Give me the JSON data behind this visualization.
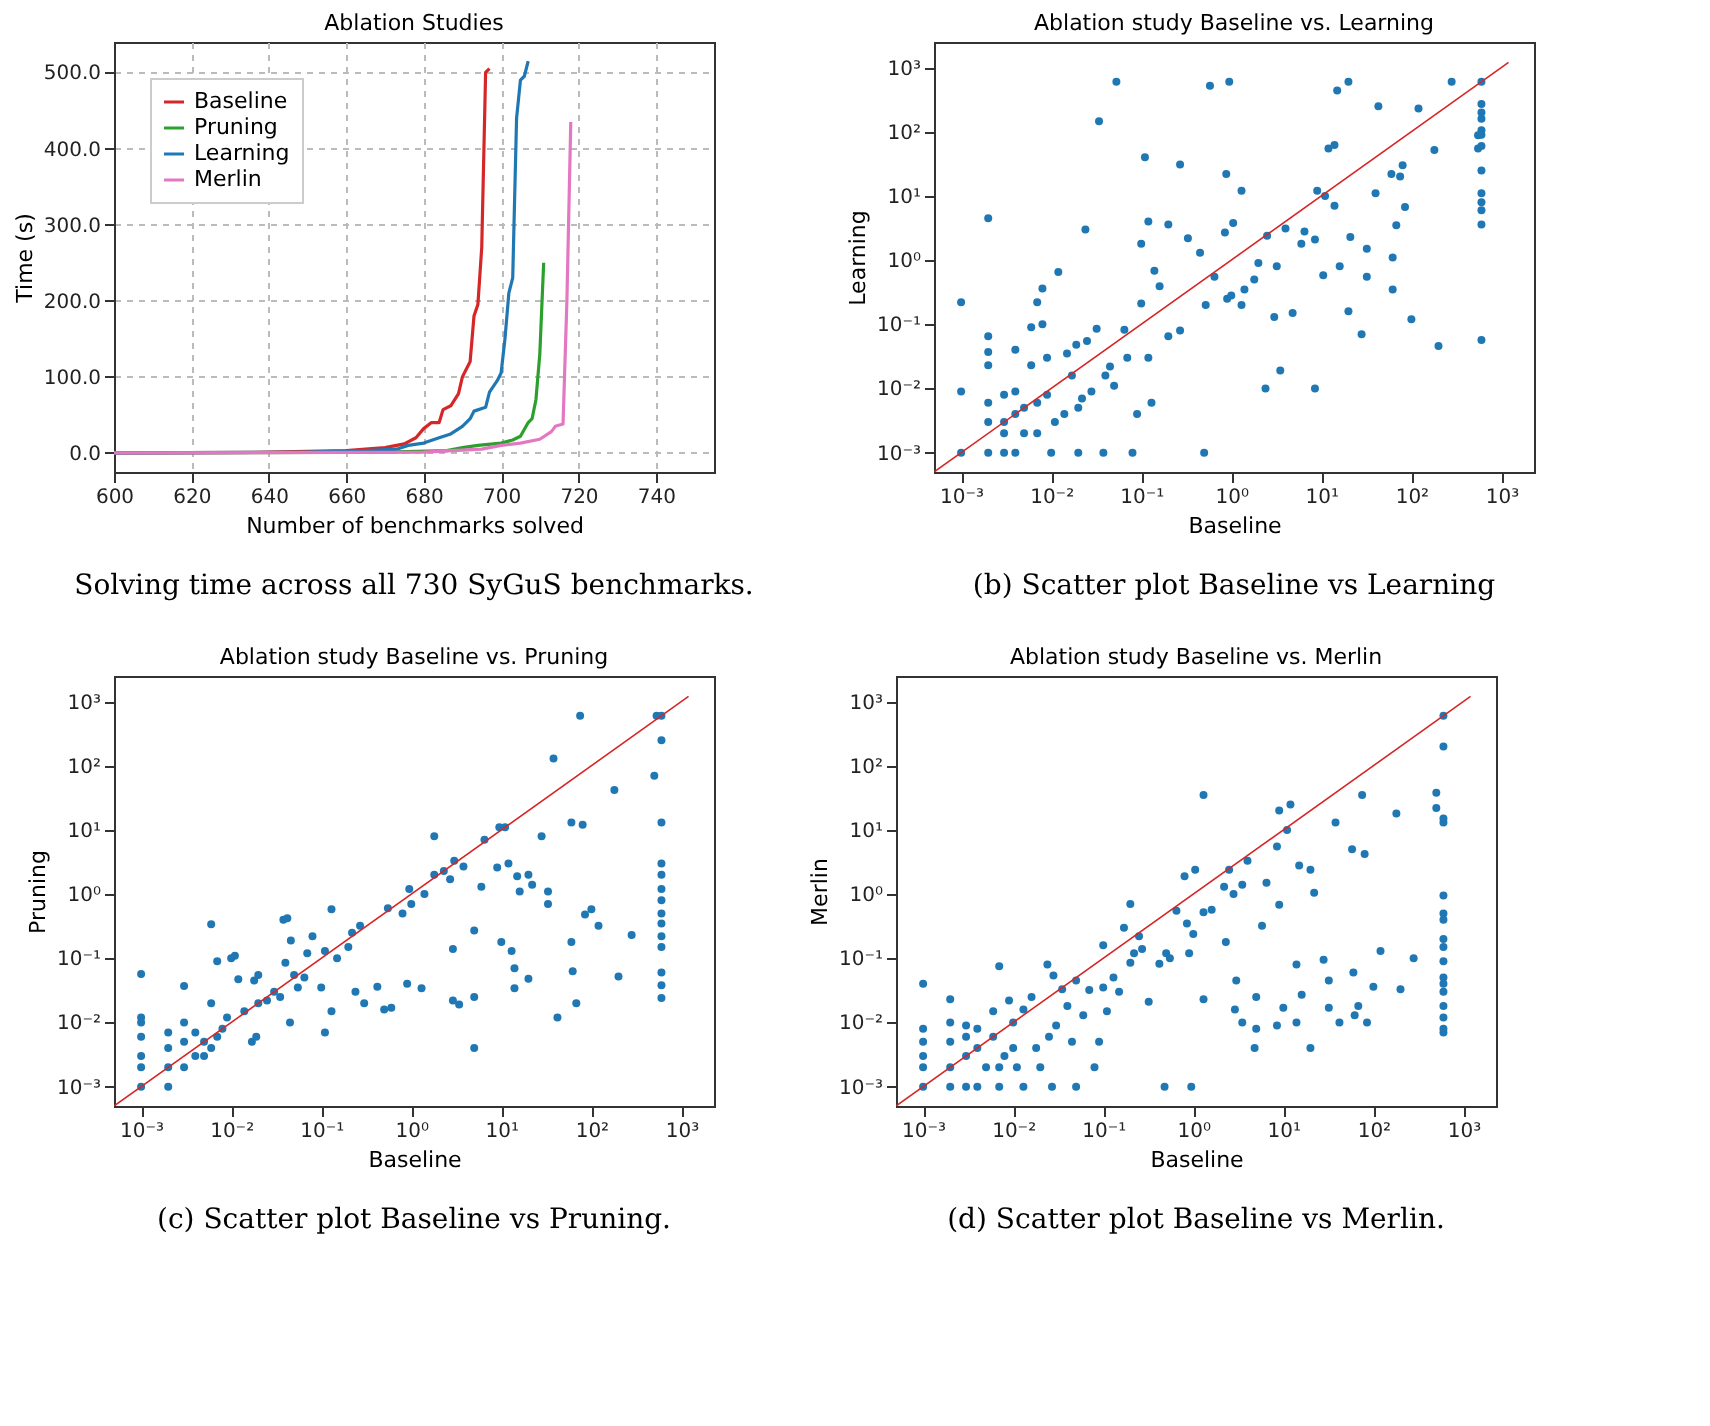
{
  "chart_data": [
    {
      "type": "line",
      "title": "Ablation Studies",
      "xlabel": "Number of benchmarks solved",
      "ylabel": "Time (s)",
      "xlim": [
        600,
        755
      ],
      "ylim": [
        -25,
        540
      ],
      "xticks": [
        600,
        620,
        640,
        660,
        680,
        700,
        720,
        740
      ],
      "yticks": [
        {
          "value": 0,
          "label": "0.0"
        },
        {
          "value": 100,
          "label": "100.0"
        },
        {
          "value": 200,
          "label": "200.0"
        },
        {
          "value": 300,
          "label": "300.0"
        },
        {
          "value": 400,
          "label": "400.0"
        },
        {
          "value": 500,
          "label": "500.0"
        }
      ],
      "grid": true,
      "legend": "top left",
      "annotations": [
        "Solving time across all 730 SyGuS benchmarks."
      ],
      "series": [
        {
          "name": "Baseline",
          "line_style": "solid",
          "color": "#d62728",
          "x": [
            600,
            640,
            660,
            670,
            675,
            678,
            680,
            682,
            684,
            685,
            687,
            689,
            690,
            691,
            692,
            693,
            694,
            695,
            696,
            697
          ],
          "values": [
            0,
            1,
            3,
            7,
            12,
            20,
            32,
            40,
            40,
            57,
            62,
            78,
            100,
            110,
            120,
            180,
            195,
            270,
            500,
            505
          ]
        },
        {
          "name": "Pruning",
          "line_style": "solid",
          "color": "#2ca02c",
          "x": [
            600,
            670,
            686,
            690,
            694,
            700,
            703,
            705,
            707,
            708,
            709,
            710,
            711
          ],
          "values": [
            0,
            1,
            3,
            7,
            10,
            13,
            17,
            22,
            40,
            45,
            70,
            130,
            250
          ]
        },
        {
          "name": "Learning",
          "line_style": "solid",
          "color": "#1f77b4",
          "x": [
            600,
            650,
            665,
            673,
            676,
            680,
            684,
            687,
            690,
            692,
            693,
            696,
            697,
            699,
            700,
            701,
            702,
            703,
            704,
            705,
            706,
            707
          ],
          "values": [
            0,
            1,
            3,
            5,
            10,
            13,
            20,
            25,
            35,
            45,
            55,
            60,
            80,
            95,
            105,
            150,
            210,
            230,
            440,
            490,
            495,
            515
          ]
        },
        {
          "name": "Merlin",
          "line_style": "solid",
          "color": "#e377c2",
          "x": [
            600,
            680,
            695,
            700,
            705,
            710,
            713,
            714,
            716,
            717,
            718
          ],
          "values": [
            0,
            1,
            5,
            10,
            13,
            18,
            28,
            35,
            38,
            200,
            435
          ]
        }
      ]
    },
    {
      "type": "scatter",
      "title": "Ablation study Baseline vs. Learning",
      "xlabel": "Baseline",
      "ylabel": "Learning",
      "log": "xy",
      "marker": "circle",
      "xlim": [
        0.0005,
        2300
      ],
      "ylim": [
        0.0005,
        2500
      ],
      "xticks": [
        {
          "value": 0.001,
          "label": "10⁻³"
        },
        {
          "value": 0.01,
          "label": "10⁻²"
        },
        {
          "value": 0.1,
          "label": "10⁻¹"
        },
        {
          "value": 1,
          "label": "10⁰"
        },
        {
          "value": 10,
          "label": "10¹"
        },
        {
          "value": 100,
          "label": "10²"
        },
        {
          "value": 1000,
          "label": "10³"
        }
      ],
      "yticks": [
        {
          "value": 0.001,
          "label": "10⁻³"
        },
        {
          "value": 0.01,
          "label": "10⁻²"
        },
        {
          "value": 0.1,
          "label": "10⁻¹"
        },
        {
          "value": 1,
          "label": "10⁰"
        },
        {
          "value": 10,
          "label": "10¹"
        },
        {
          "value": 100,
          "label": "10²"
        },
        {
          "value": 1000,
          "label": "10³"
        }
      ],
      "annotations": [
        "(b) Scatter plot Baseline vs Learning"
      ],
      "series": [
        {
          "type": "scatter",
          "color": "#1f77b4",
          "x": [
            0.001,
            0.001,
            0.001,
            0.002,
            0.002,
            0.002,
            0.002,
            0.002,
            0.002,
            0.002,
            0.003,
            0.003,
            0.003,
            0.003,
            0.004,
            0.004,
            0.004,
            0.004,
            0.005,
            0.005,
            0.006,
            0.006,
            0.007,
            0.007,
            0.007,
            0.008,
            0.008,
            0.009,
            0.009,
            0.01,
            0.011,
            0.012,
            0.014,
            0.015,
            0.017,
            0.019,
            0.02,
            0.02,
            0.022,
            0.024,
            0.025,
            0.028,
            0.032,
            0.034,
            0.038,
            0.04,
            0.045,
            0.05,
            0.053,
            0.065,
            0.07,
            0.08,
            0.09,
            0.1,
            0.1,
            0.11,
            0.12,
            0.12,
            0.13,
            0.14,
            0.16,
            0.2,
            0.2,
            0.27,
            0.27,
            0.33,
            0.45,
            0.5,
            0.52,
            0.58,
            0.65,
            0.85,
            0.88,
            0.9,
            0.95,
            1.0,
            1.05,
            1.3,
            1.3,
            1.4,
            1.8,
            2.0,
            2.4,
            2.5,
            3.0,
            3.2,
            3.5,
            4.0,
            4.8,
            6.0,
            6.5,
            8.5,
            8.5,
            9.0,
            10.5,
            11,
            12,
            14,
            14,
            15,
            16,
            20,
            20,
            21,
            28,
            32,
            32,
            40,
            43,
            60,
            62,
            62,
            68,
            75,
            80,
            85,
            100,
            120,
            180,
            200,
            280,
            550,
            550,
            600,
            600,
            600,
            600,
            600,
            600,
            600,
            600,
            600,
            600,
            600,
            600,
            600
          ],
          "values": [
            0.001,
            0.009,
            0.22,
            0.001,
            0.003,
            0.006,
            0.023,
            0.037,
            0.065,
            4.5,
            0.001,
            0.002,
            0.003,
            0.008,
            0.001,
            0.004,
            0.009,
            0.04,
            0.005,
            0.002,
            0.023,
            0.09,
            0.22,
            0.002,
            0.006,
            0.36,
            0.1,
            0.03,
            0.008,
            0.001,
            0.003,
            0.65,
            0.004,
            0.035,
            0.016,
            0.048,
            0.005,
            0.001,
            0.007,
            3.0,
            0.055,
            0.009,
            0.085,
            145,
            0.001,
            0.016,
            0.022,
            0.011,
            600,
            0.082,
            0.03,
            0.001,
            0.004,
            0.21,
            1.8,
            40,
            4.0,
            0.03,
            0.006,
            0.68,
            0.39,
            3.6,
            0.065,
            31,
            0.08,
            2.2,
            1.3,
            0.001,
            0.2,
            520,
            0.55,
            2.7,
            22,
            0.25,
            600,
            0.28,
            3.8,
            12,
            0.2,
            0.35,
            0.5,
            0.9,
            0.01,
            2.4,
            0.13,
            0.8,
            0.019,
            3.1,
            0.15,
            1.8,
            2.8,
            0.01,
            2.1,
            12,
            0.58,
            10,
            55,
            62,
            7,
            440,
            0.8,
            600,
            0.16,
            2.3,
            0.07,
            1.5,
            0.55,
            11,
            250,
            22,
            0.35,
            1.1,
            3.5,
            20,
            30,
            6.7,
            0.12,
            230,
            52,
            0.046,
            600,
            55,
            88,
            600,
            270,
            200,
            160,
            105,
            90,
            60,
            25,
            11,
            8,
            6,
            3.6,
            0.057
          ]
        },
        {
          "type": "line",
          "marker": "none",
          "line_style": "solid",
          "color": "#d62728",
          "x": [
            0.0005,
            1200
          ],
          "values": [
            0.0005,
            1200
          ]
        }
      ]
    },
    {
      "type": "scatter",
      "title": "Ablation study Baseline vs. Pruning",
      "xlabel": "Baseline",
      "ylabel": "Pruning",
      "log": "xy",
      "marker": "circle",
      "xlim": [
        0.0005,
        2300
      ],
      "ylim": [
        0.0005,
        2500
      ],
      "xticks": [
        {
          "value": 0.001,
          "label": "10⁻³"
        },
        {
          "value": 0.01,
          "label": "10⁻²"
        },
        {
          "value": 0.1,
          "label": "10⁻¹"
        },
        {
          "value": 1,
          "label": "10⁰"
        },
        {
          "value": 10,
          "label": "10¹"
        },
        {
          "value": 100,
          "label": "10²"
        },
        {
          "value": 1000,
          "label": "10³"
        }
      ],
      "yticks": [
        {
          "value": 0.001,
          "label": "10⁻³"
        },
        {
          "value": 0.01,
          "label": "10⁻²"
        },
        {
          "value": 0.1,
          "label": "10⁻¹"
        },
        {
          "value": 1,
          "label": "10⁰"
        },
        {
          "value": 10,
          "label": "10¹"
        },
        {
          "value": 100,
          "label": "10²"
        },
        {
          "value": 1000,
          "label": "10³"
        }
      ],
      "annotations": [
        "(c) Scatter plot Baseline vs Pruning."
      ],
      "series": [
        {
          "type": "scatter",
          "color": "#1f77b4",
          "x": [
            0.001,
            0.001,
            0.001,
            0.001,
            0.001,
            0.001,
            0.001,
            0.002,
            0.002,
            0.002,
            0.002,
            0.003,
            0.003,
            0.003,
            0.003,
            0.004,
            0.004,
            0.005,
            0.005,
            0.006,
            0.006,
            0.006,
            0.007,
            0.007,
            0.008,
            0.009,
            0.01,
            0.011,
            0.012,
            0.014,
            0.017,
            0.018,
            0.019,
            0.02,
            0.02,
            0.025,
            0.03,
            0.035,
            0.038,
            0.042,
            0.04,
            0.045,
            0.046,
            0.05,
            0.055,
            0.065,
            0.07,
            0.08,
            0.1,
            0.11,
            0.11,
            0.13,
            0.13,
            0.15,
            0.2,
            0.22,
            0.24,
            0.27,
            0.3,
            0.42,
            0.5,
            0.55,
            0.6,
            0.8,
            0.9,
            0.95,
            1.0,
            1.3,
            1.4,
            1.8,
            1.8,
            2.3,
            2.7,
            2.9,
            2.9,
            3.0,
            3.4,
            3.8,
            5.0,
            5.0,
            5.0,
            6.0,
            6.5,
            9.0,
            9.5,
            10,
            11,
            12,
            13,
            14,
            14,
            15,
            16,
            20,
            20,
            22,
            28,
            33,
            33,
            38,
            42,
            60,
            60,
            62,
            68,
            75,
            80,
            85,
            100,
            120,
            180,
            200,
            280,
            500,
            530,
            600,
            600,
            600,
            600,
            600,
            600,
            600,
            600,
            600,
            600,
            600,
            600,
            600,
            600
          ],
          "values": [
            0.001,
            0.002,
            0.003,
            0.006,
            0.01,
            0.012,
            0.057,
            0.001,
            0.002,
            0.004,
            0.007,
            0.002,
            0.005,
            0.01,
            0.037,
            0.003,
            0.007,
            0.003,
            0.005,
            0.02,
            0.34,
            0.004,
            0.09,
            0.006,
            0.008,
            0.012,
            0.1,
            0.11,
            0.047,
            0.015,
            0.005,
            0.045,
            0.006,
            0.055,
            0.02,
            0.022,
            0.03,
            0.025,
            0.4,
            0.42,
            0.085,
            0.01,
            0.19,
            0.055,
            0.035,
            0.05,
            0.12,
            0.22,
            0.035,
            0.007,
            0.13,
            0.58,
            0.015,
            0.1,
            0.15,
            0.25,
            0.03,
            0.32,
            0.02,
            0.036,
            0.016,
            0.6,
            0.017,
            0.5,
            0.04,
            1.2,
            0.7,
            0.034,
            1.0,
            8,
            2.0,
            2.3,
            1.7,
            0.022,
            0.14,
            3.3,
            0.019,
            2.7,
            0.27,
            0.004,
            0.025,
            1.3,
            7,
            2.6,
            11,
            0.18,
            11,
            3.0,
            0.13,
            0.07,
            0.034,
            1.9,
            1.1,
            2.0,
            0.048,
            1.4,
            8,
            1.1,
            0.7,
            130,
            0.012,
            13,
            0.18,
            0.063,
            0.02,
            600,
            12,
            0.48,
            0.58,
            0.32,
            42,
            0.052,
            0.23,
            70,
            600,
            600,
            250,
            13,
            3,
            2,
            1.2,
            0.8,
            0.5,
            0.35,
            0.22,
            0.15,
            0.06,
            0.038,
            0.024
          ]
        },
        {
          "type": "line",
          "marker": "none",
          "line_style": "solid",
          "color": "#d62728",
          "x": [
            0.0005,
            1200
          ],
          "values": [
            0.0005,
            1200
          ]
        }
      ]
    },
    {
      "type": "scatter",
      "title": "Ablation study Baseline vs. Merlin",
      "xlabel": "Baseline",
      "ylabel": "Merlin",
      "log": "xy",
      "marker": "circle",
      "xlim": [
        0.0005,
        2300
      ],
      "ylim": [
        0.0005,
        2500
      ],
      "xticks": [
        {
          "value": 0.001,
          "label": "10⁻³"
        },
        {
          "value": 0.01,
          "label": "10⁻²"
        },
        {
          "value": 0.1,
          "label": "10⁻¹"
        },
        {
          "value": 1,
          "label": "10⁰"
        },
        {
          "value": 10,
          "label": "10¹"
        },
        {
          "value": 100,
          "label": "10²"
        },
        {
          "value": 1000,
          "label": "10³"
        }
      ],
      "yticks": [
        {
          "value": 0.001,
          "label": "10⁻³"
        },
        {
          "value": 0.01,
          "label": "10⁻²"
        },
        {
          "value": 0.1,
          "label": "10⁻¹"
        },
        {
          "value": 1,
          "label": "10⁰"
        },
        {
          "value": 10,
          "label": "10¹"
        },
        {
          "value": 100,
          "label": "10²"
        },
        {
          "value": 1000,
          "label": "10³"
        }
      ],
      "annotations": [
        "(d) Scatter plot Baseline vs Merlin."
      ],
      "series": [
        {
          "type": "scatter",
          "color": "#1f77b4",
          "x": [
            0.001,
            0.001,
            0.001,
            0.001,
            0.001,
            0.001,
            0.002,
            0.002,
            0.002,
            0.002,
            0.002,
            0.003,
            0.003,
            0.003,
            0.003,
            0.004,
            0.004,
            0.004,
            0.005,
            0.006,
            0.006,
            0.007,
            0.007,
            0.007,
            0.008,
            0.009,
            0.01,
            0.01,
            0.011,
            0.013,
            0.013,
            0.016,
            0.018,
            0.02,
            0.024,
            0.025,
            0.027,
            0.028,
            0.03,
            0.035,
            0.04,
            0.045,
            0.05,
            0.05,
            0.06,
            0.07,
            0.08,
            0.09,
            0.1,
            0.1,
            0.11,
            0.13,
            0.15,
            0.17,
            0.2,
            0.2,
            0.22,
            0.25,
            0.27,
            0.32,
            0.42,
            0.48,
            0.5,
            0.55,
            0.65,
            0.8,
            0.85,
            0.9,
            0.95,
            1.0,
            1.05,
            1.3,
            1.3,
            1.3,
            1.6,
            2.2,
            2.3,
            2.5,
            2.8,
            2.9,
            3.0,
            3.5,
            3.5,
            4.0,
            4.8,
            5.0,
            5.0,
            5.8,
            6.5,
            8.5,
            8.5,
            9.0,
            9.0,
            10,
            11,
            12,
            14,
            14,
            15,
            16,
            20,
            20,
            22,
            28,
            32,
            32,
            38,
            42,
            58,
            60,
            62,
            68,
            75,
            80,
            85,
            100,
            120,
            180,
            200,
            280,
            500,
            500,
            600,
            600,
            600,
            600,
            600,
            600,
            600,
            600,
            600,
            600,
            600,
            600,
            600,
            600,
            600,
            600,
            600
          ],
          "values": [
            0.001,
            0.002,
            0.003,
            0.005,
            0.008,
            0.04,
            0.001,
            0.002,
            0.005,
            0.01,
            0.023,
            0.001,
            0.003,
            0.006,
            0.009,
            0.001,
            0.004,
            0.008,
            0.002,
            0.006,
            0.015,
            0.075,
            0.001,
            0.002,
            0.003,
            0.022,
            0.01,
            0.004,
            0.002,
            0.001,
            0.016,
            0.025,
            0.004,
            0.002,
            0.08,
            0.006,
            0.001,
            0.054,
            0.009,
            0.033,
            0.018,
            0.005,
            0.001,
            0.045,
            0.013,
            0.032,
            0.002,
            0.005,
            0.16,
            0.035,
            0.015,
            0.05,
            0.03,
            0.3,
            0.7,
            0.085,
            0.12,
            0.22,
            0.14,
            0.021,
            0.082,
            0.001,
            0.12,
            0.1,
            0.55,
            1.9,
            0.35,
            0.12,
            0.001,
            0.24,
            2.4,
            35,
            0.023,
            0.52,
            0.57,
            1.3,
            0.18,
            2.4,
            1.0,
            0.016,
            0.045,
            0.01,
            1.4,
            3.3,
            0.004,
            0.025,
            0.008,
            0.32,
            1.5,
            0.009,
            5.5,
            20,
            0.68,
            0.017,
            10,
            25,
            0.08,
            0.01,
            2.8,
            0.027,
            0.004,
            2.4,
            1.05,
            0.095,
            0.017,
            0.045,
            13,
            0.01,
            5,
            0.06,
            0.013,
            0.018,
            35,
            4.2,
            0.01,
            0.036,
            0.13,
            18,
            0.033,
            0.1,
            22,
            38,
            600,
            200,
            15,
            13,
            0.95,
            0.5,
            0.4,
            0.2,
            0.15,
            0.09,
            0.05,
            0.04,
            0.03,
            0.018,
            0.012,
            0.008,
            0.007
          ]
        },
        {
          "type": "line",
          "marker": "none",
          "line_style": "solid",
          "color": "#d62728",
          "x": [
            0.0005,
            1200
          ],
          "values": [
            0.0005,
            1200
          ]
        }
      ]
    }
  ]
}
